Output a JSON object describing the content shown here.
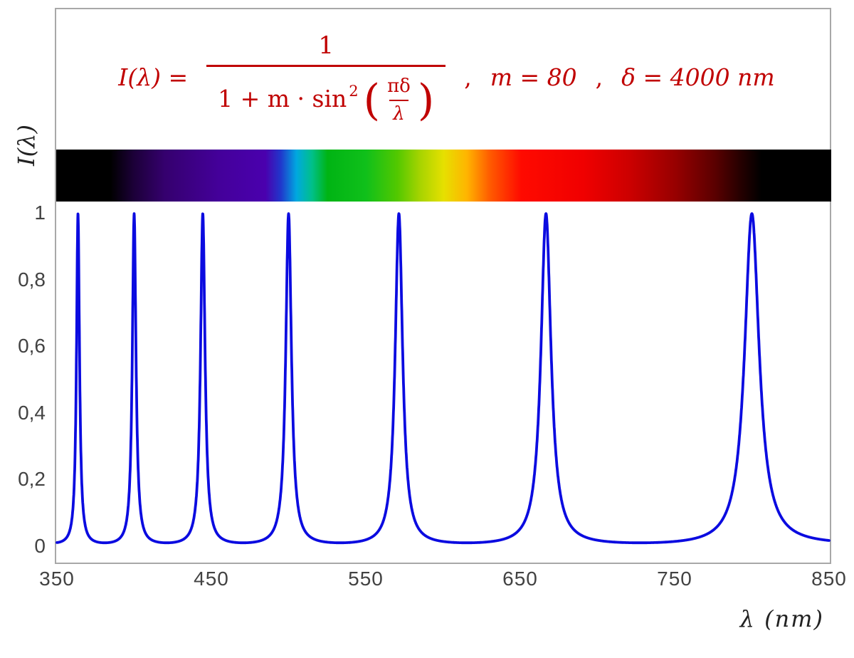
{
  "formula": {
    "color": "#c00000",
    "lhs": "I(λ) =",
    "numerator": "1",
    "denom_prefix": "1 + m · sin",
    "denom_sup": "2",
    "paren_open": "(",
    "paren_close": ")",
    "inner_numerator": "πδ",
    "inner_denominator": "λ",
    "comma1": ",",
    "param_m": "m = 80",
    "comma2": ",",
    "param_delta": "δ = 4000 nm"
  },
  "axes": {
    "y_label": "I(λ)",
    "x_label": "λ  (nm)",
    "y_ticks": [
      "0",
      "0,2",
      "0,4",
      "0,6",
      "0,8",
      "1"
    ],
    "x_ticks": [
      "350",
      "450",
      "550",
      "650",
      "750",
      "850"
    ]
  },
  "chart_data": {
    "type": "line",
    "title": "Interference transmission function I(λ) = 1 / (1 + m·sin²(πδ/λ)), m = 80, δ = 4000 nm",
    "xlabel": "λ (nm)",
    "ylabel": "I(λ)",
    "xlim": [
      350,
      850
    ],
    "ylim": [
      0,
      1
    ],
    "grid": false,
    "legend": "none",
    "params": {
      "m": 80,
      "delta_nm": 4000
    },
    "curve_color": "#0b0be0",
    "frame_color": "#a8a8a8",
    "peak_wavelengths_nm": [
      363.64,
      400.0,
      444.44,
      500.0,
      571.43,
      666.67,
      800.0
    ],
    "peak_value": 1.0,
    "baseline_value": 0.012,
    "x_ticks": [
      350,
      450,
      550,
      650,
      750,
      850
    ],
    "y_ticks_values": [
      0,
      0.2,
      0.4,
      0.6,
      0.8,
      1
    ],
    "spectrum_bar": {
      "range_nm": [
        350,
        850
      ],
      "visible_band_nm": [
        385,
        780
      ],
      "stops": [
        {
          "pos": 0,
          "color": "#000000"
        },
        {
          "pos": 7,
          "color": "#000000"
        },
        {
          "pos": 10,
          "color": "#1c0038"
        },
        {
          "pos": 14,
          "color": "#35006e"
        },
        {
          "pos": 21,
          "color": "#44009a"
        },
        {
          "pos": 27,
          "color": "#4a00ae"
        },
        {
          "pos": 29,
          "color": "#2038cc"
        },
        {
          "pos": 31,
          "color": "#00a8e0"
        },
        {
          "pos": 33,
          "color": "#00c08a"
        },
        {
          "pos": 35,
          "color": "#00b414"
        },
        {
          "pos": 40,
          "color": "#10c01a"
        },
        {
          "pos": 44,
          "color": "#52c800"
        },
        {
          "pos": 47,
          "color": "#a8d400"
        },
        {
          "pos": 50,
          "color": "#e6e000"
        },
        {
          "pos": 53,
          "color": "#ffb400"
        },
        {
          "pos": 56,
          "color": "#ff5a00"
        },
        {
          "pos": 60,
          "color": "#ff0a00"
        },
        {
          "pos": 68,
          "color": "#f00000"
        },
        {
          "pos": 74,
          "color": "#cc0000"
        },
        {
          "pos": 80,
          "color": "#960000"
        },
        {
          "pos": 85,
          "color": "#5a0000"
        },
        {
          "pos": 88,
          "color": "#2a0000"
        },
        {
          "pos": 91,
          "color": "#000000"
        },
        {
          "pos": 100,
          "color": "#000000"
        }
      ]
    }
  }
}
